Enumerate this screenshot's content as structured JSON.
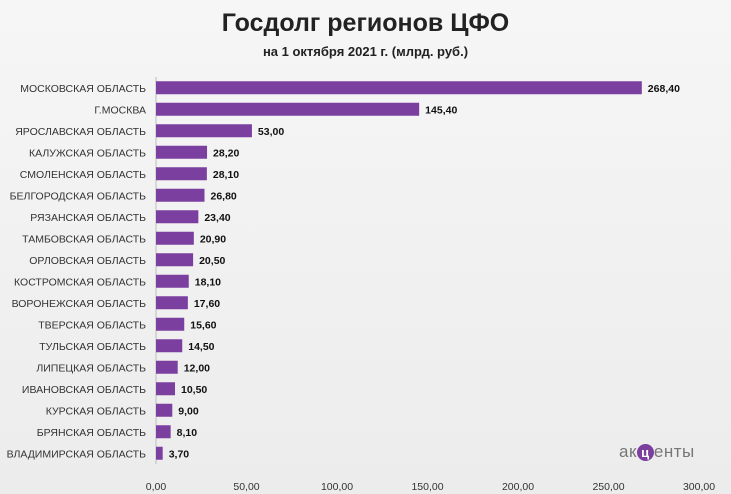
{
  "chart_data": {
    "type": "bar",
    "orientation": "horizontal",
    "title": "Госдолг регионов ЦФО",
    "subtitle": "на 1 октября 2021 г. (млрд. руб.)",
    "categories": [
      "МОСКОВСКАЯ ОБЛАСТЬ",
      "Г.МОСКВА",
      "ЯРОСЛАВСКАЯ ОБЛАСТЬ",
      "КАЛУЖСКАЯ ОБЛАСТЬ",
      "СМОЛЕНСКАЯ ОБЛАСТЬ",
      "БЕЛГОРОДСКАЯ ОБЛАСТЬ",
      "РЯЗАНСКАЯ ОБЛАСТЬ",
      "ТАМБОВСКАЯ ОБЛАСТЬ",
      "ОРЛОВСКАЯ ОБЛАСТЬ",
      "КОСТРОМСКАЯ ОБЛАСТЬ",
      "ВОРОНЕЖСКАЯ ОБЛАСТЬ",
      "ТВЕРСКАЯ ОБЛАСТЬ",
      "ТУЛЬСКАЯ ОБЛАСТЬ",
      "ЛИПЕЦКАЯ ОБЛАСТЬ",
      "ИВАНОВСКАЯ ОБЛАСТЬ",
      "КУРСКАЯ ОБЛАСТЬ",
      "БРЯНСКАЯ ОБЛАСТЬ",
      "ВЛАДИМИРСКАЯ ОБЛАСТЬ"
    ],
    "values": [
      268.4,
      145.4,
      53.0,
      28.2,
      28.1,
      26.8,
      23.4,
      20.9,
      20.5,
      18.1,
      17.6,
      15.6,
      14.5,
      12.0,
      10.5,
      9.0,
      8.1,
      3.7
    ],
    "value_labels": [
      "268,40",
      "145,40",
      "53,00",
      "28,20",
      "28,10",
      "26,80",
      "23,40",
      "20,90",
      "20,50",
      "18,10",
      "17,60",
      "15,60",
      "14,50",
      "12,00",
      "10,50",
      "9,00",
      "8,10",
      "3,70"
    ],
    "xlim": [
      0,
      300
    ],
    "x_ticks": [
      0,
      50,
      100,
      150,
      200,
      250,
      300
    ],
    "x_tick_labels": [
      "0,00",
      "50,00",
      "100,00",
      "150,00",
      "200,00",
      "250,00",
      "300,00"
    ],
    "grid": false,
    "bar_color": "#7b3fa0"
  },
  "logo": {
    "prefix": "ак",
    "mark": "ц",
    "suffix": "енты"
  }
}
